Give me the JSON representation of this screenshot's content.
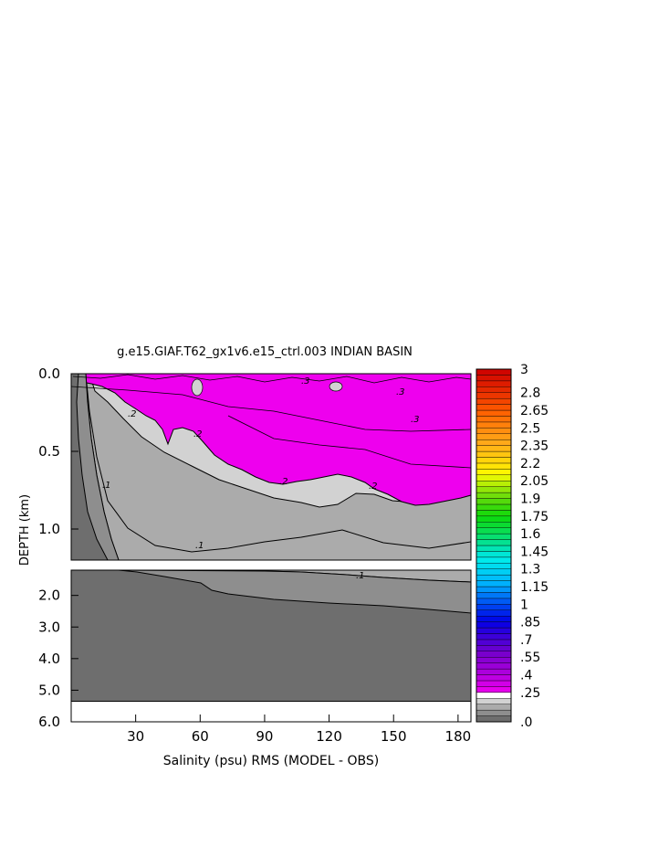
{
  "chart_data": {
    "type": "heatmap",
    "title": "g.e15.GIAF.T62_gx1v6.e15_ctrl.003 INDIAN BASIN",
    "xlabel": "Salinity (psu) RMS (MODEL - OBS)",
    "ylabel": "DEPTH (km)",
    "x_range": [
      0,
      186
    ],
    "x_ticks": [
      "30",
      "60",
      "90",
      "120",
      "150",
      "180"
    ],
    "upper_panel": {
      "depth_range": [
        0.0,
        1.2
      ],
      "y_ticks": [
        "0.0",
        "0.5",
        "1.0"
      ]
    },
    "lower_panel": {
      "depth_range": [
        1.2,
        6.0
      ],
      "y_ticks": [
        "2.0",
        "3.0",
        "4.0",
        "5.0",
        "6.0"
      ]
    },
    "contour_labels": [
      ".3",
      ".3",
      ".3",
      ".2",
      ".2",
      ".2",
      ".2",
      ".1",
      ".1",
      ".1"
    ],
    "colorbar": {
      "labels": [
        "3",
        "2.8",
        "2.65",
        "2.5",
        "2.35",
        "2.2",
        "2.05",
        "1.9",
        "1.75",
        "1.6",
        "1.45",
        "1.3",
        "1.15",
        "1",
        ".85",
        ".7",
        ".55",
        ".4",
        ".25",
        ".0"
      ],
      "range": [
        0,
        3
      ]
    },
    "regions": [
      {
        "min": 0.0,
        "max": 0.05,
        "color": "#6e6e6e"
      },
      {
        "min": 0.05,
        "max": 0.1,
        "color": "#8e8e8e"
      },
      {
        "min": 0.1,
        "max": 0.15,
        "color": "#ababab"
      },
      {
        "min": 0.15,
        "max": 0.25,
        "color": "#d2d2d2"
      },
      {
        "min": 0.25,
        "max": 0.4,
        "color": "#ee00ee"
      }
    ],
    "grid": false
  }
}
